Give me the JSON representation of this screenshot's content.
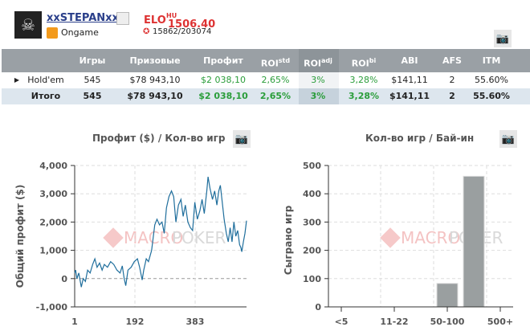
{
  "profile": {
    "username": "xxSTEPANxx",
    "room": "Ongame",
    "elo_label": "ELO",
    "elo_sup": "HU",
    "rank": "15862/203074",
    "elo_value": "1506.40"
  },
  "table": {
    "headers": [
      {
        "label": ""
      },
      {
        "label": "Игры"
      },
      {
        "label": "Призовые"
      },
      {
        "label": "Профит"
      },
      {
        "label": "ROI",
        "sup": "std"
      },
      {
        "label": "ROI",
        "sup": "adj"
      },
      {
        "label": "ROI",
        "sup": "bi"
      },
      {
        "label": "ABI"
      },
      {
        "label": "AFS"
      },
      {
        "label": "ITM"
      }
    ],
    "rows": [
      [
        "Hold'em",
        "545",
        "$78 943,10",
        "$2 038,10",
        "2,65%",
        "3%",
        "3,28%",
        "$141,11",
        "2",
        "55.60%"
      ],
      [
        "Итого",
        "545",
        "$78 943,10",
        "$2 038,10",
        "2,65%",
        "3%",
        "3,28%",
        "$141,11",
        "2",
        "55.60%"
      ]
    ]
  },
  "watermark": {
    "left": "MACRO",
    "right": "POKER"
  },
  "chart_data": [
    {
      "type": "line",
      "title": "Профит ($) / Кол-во игр",
      "xlabel": "",
      "ylabel": "Общий профит ($)",
      "xticks": [
        "1",
        "192",
        "383"
      ],
      "xtick_values": [
        1,
        192,
        383
      ],
      "xlim": [
        1,
        546
      ],
      "ylim": [
        -1000,
        4000
      ],
      "yticks": [
        "-1,000",
        "0",
        "1,000",
        "2,000",
        "3,000",
        "4,000"
      ],
      "ytick_values": [
        -1000,
        0,
        1000,
        2000,
        3000,
        4000
      ],
      "grid": true,
      "color": "#1f6e9c",
      "points": [
        [
          1,
          200
        ],
        [
          4,
          300
        ],
        [
          8,
          0
        ],
        [
          14,
          200
        ],
        [
          22,
          -300
        ],
        [
          28,
          0
        ],
        [
          35,
          -100
        ],
        [
          42,
          300
        ],
        [
          50,
          200
        ],
        [
          58,
          500
        ],
        [
          65,
          700
        ],
        [
          72,
          400
        ],
        [
          80,
          550
        ],
        [
          88,
          300
        ],
        [
          95,
          500
        ],
        [
          105,
          400
        ],
        [
          115,
          600
        ],
        [
          125,
          500
        ],
        [
          135,
          300
        ],
        [
          145,
          200
        ],
        [
          152,
          450
        ],
        [
          158,
          0
        ],
        [
          163,
          -250
        ],
        [
          170,
          300
        ],
        [
          180,
          400
        ],
        [
          190,
          600
        ],
        [
          200,
          700
        ],
        [
          207,
          400
        ],
        [
          215,
          -50
        ],
        [
          220,
          300
        ],
        [
          228,
          700
        ],
        [
          235,
          600
        ],
        [
          245,
          1000
        ],
        [
          255,
          1900
        ],
        [
          262,
          2100
        ],
        [
          270,
          1900
        ],
        [
          278,
          2000
        ],
        [
          285,
          1600
        ],
        [
          292,
          2500
        ],
        [
          300,
          2900
        ],
        [
          308,
          3100
        ],
        [
          315,
          2900
        ],
        [
          322,
          2000
        ],
        [
          330,
          2600
        ],
        [
          338,
          2800
        ],
        [
          345,
          2200
        ],
        [
          352,
          2600
        ],
        [
          360,
          2000
        ],
        [
          368,
          1800
        ],
        [
          375,
          1700
        ],
        [
          382,
          2700
        ],
        [
          390,
          2100
        ],
        [
          398,
          2400
        ],
        [
          405,
          2800
        ],
        [
          412,
          2300
        ],
        [
          420,
          3100
        ],
        [
          424,
          3600
        ],
        [
          430,
          3200
        ],
        [
          438,
          2800
        ],
        [
          445,
          3100
        ],
        [
          452,
          2600
        ],
        [
          458,
          3100
        ],
        [
          463,
          3300
        ],
        [
          468,
          2800
        ],
        [
          475,
          2100
        ],
        [
          482,
          1600
        ],
        [
          488,
          1300
        ],
        [
          494,
          1800
        ],
        [
          500,
          1300
        ],
        [
          506,
          2000
        ],
        [
          512,
          1500
        ],
        [
          518,
          1700
        ],
        [
          524,
          1200
        ],
        [
          528,
          1100
        ],
        [
          531,
          950
        ],
        [
          536,
          1300
        ],
        [
          541,
          1600
        ],
        [
          546,
          2050
        ]
      ]
    },
    {
      "type": "bar",
      "title": "Кол-во игр / Бай-ин",
      "xlabel": "",
      "ylabel": "Сыграно игр",
      "categories": [
        "<5",
        "",
        "11-22",
        "",
        "50-100",
        "",
        "500+"
      ],
      "values": [
        0,
        0,
        0,
        0,
        83,
        462,
        0
      ],
      "ylim": [
        0,
        500
      ],
      "yticks": [
        "0",
        "100",
        "200",
        "300",
        "400",
        "500"
      ],
      "ytick_values": [
        0,
        100,
        200,
        300,
        400,
        500
      ],
      "grid": true,
      "color": "#9a9fa0"
    }
  ]
}
